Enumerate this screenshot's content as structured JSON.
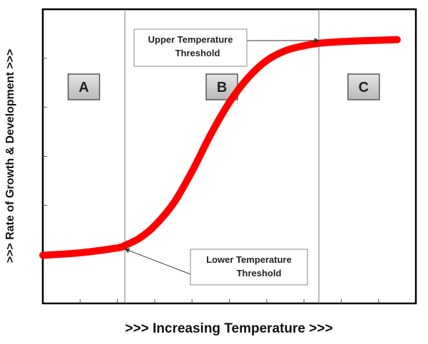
{
  "chart_data": {
    "type": "line",
    "title": "",
    "xlabel": ">>> Increasing Temperature >>>",
    "ylabel": ">>> Rate of Growth & Development >>>",
    "xlim": [
      0,
      100
    ],
    "ylim": [
      0,
      100
    ],
    "grid": false,
    "legend": "none",
    "series": [
      {
        "x": [
          0,
          10,
          20,
          22,
          26,
          30,
          35,
          40,
          45,
          50,
          55,
          60,
          65,
          70,
          74,
          78,
          85,
          95
        ],
        "y": [
          10,
          11,
          13,
          14,
          17,
          22,
          31,
          44,
          59,
          72,
          82,
          89,
          93,
          95,
          96,
          96.5,
          97,
          97.5
        ]
      }
    ],
    "thresholds": {
      "lower": 22,
      "upper": 74
    },
    "regions": [
      {
        "label": "A",
        "x": 11
      },
      {
        "label": "B",
        "x": 48
      },
      {
        "label": "C",
        "x": 86
      }
    ],
    "annotations": [
      {
        "lines": [
          "Upper Temperature",
          "Threshold"
        ],
        "target_x": 74
      },
      {
        "lines": [
          "Lower Temperature",
          "Threshold"
        ],
        "target_x": 22
      }
    ],
    "line_color": "#ff0000"
  }
}
